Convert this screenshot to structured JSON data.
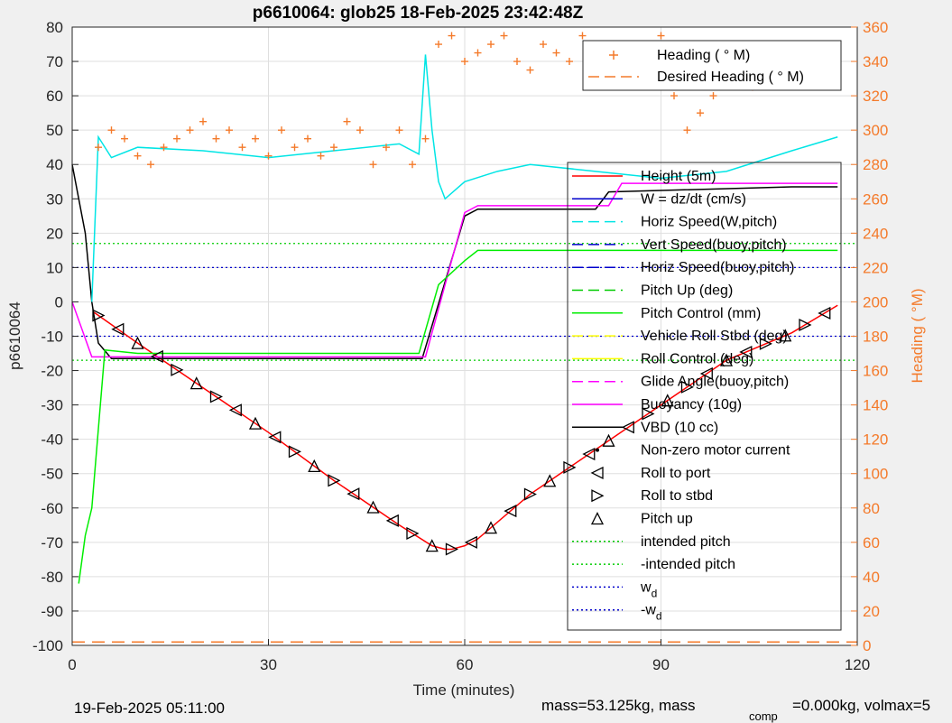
{
  "title": "p6610064: glob25 18-Feb-2025 23:42:48Z",
  "xlabel": "Time (minutes)",
  "ylabel_left": "p6610064",
  "ylabel_right": "Heading (  °M)",
  "footer_left": "19-Feb-2025 05:11:00",
  "footer_right_a": "mass=53.125kg, mass",
  "footer_right_sub": "comp",
  "footer_right_b": "=0.000kg, volmax=5",
  "legend_top": [
    {
      "label": "Heading (  ° M)",
      "color": "#f47a2a",
      "style": "plus"
    },
    {
      "label": "Desired Heading (  ° M)",
      "color": "#f47a2a",
      "style": "dash"
    }
  ],
  "legend_main": [
    {
      "label": "Height (5m)",
      "color": "#ff0000",
      "style": "solid"
    },
    {
      "label": "W = dz/dt (cm/s)",
      "color": "#0000cc",
      "style": "solid"
    },
    {
      "label": "Horiz Speed(W,pitch)",
      "color": "#00e5e5",
      "style": "dash"
    },
    {
      "label": "Vert Speed(buoy,pitch)",
      "color": "#0000cc",
      "style": "dash"
    },
    {
      "label": "Horiz Speed(buoy,pitch)",
      "color": "#0000cc",
      "style": "dash"
    },
    {
      "label": "Pitch Up (deg)",
      "color": "#00cc00",
      "style": "dash"
    },
    {
      "label": "Pitch Control (mm)",
      "color": "#00ee00",
      "style": "solid"
    },
    {
      "label": "Vehicle Roll Stbd (deg)",
      "color": "#ffff00",
      "style": "dash"
    },
    {
      "label": "Roll Control (deg)",
      "color": "#ffff00",
      "style": "solid"
    },
    {
      "label": "Glide Angle(buoy,pitch)",
      "color": "#ff00ff",
      "style": "dash"
    },
    {
      "label": "Buoyancy (10g)",
      "color": "#ff00ff",
      "style": "solid"
    },
    {
      "label": "VBD (10 cc)",
      "color": "#000000",
      "style": "solid"
    },
    {
      "label": "Non-zero motor current",
      "color": "#000000",
      "style": "dot"
    },
    {
      "label": "Roll to port",
      "color": "#000000",
      "style": "tri-left"
    },
    {
      "label": "Roll to stbd",
      "color": "#000000",
      "style": "tri-right"
    },
    {
      "label": "Pitch up",
      "color": "#000000",
      "style": "tri-up"
    },
    {
      "label": "intended pitch",
      "color": "#00cc00",
      "style": "dotted"
    },
    {
      "label": "-intended pitch",
      "color": "#00cc00",
      "style": "dotted"
    },
    {
      "label": "w",
      "sub": "d",
      "color": "#0000cc",
      "style": "dotted"
    },
    {
      "label": "-w",
      "sub": "d",
      "color": "#0000cc",
      "style": "dotted"
    }
  ],
  "chart_data": {
    "type": "line",
    "title": "p6610064: glob25 18-Feb-2025 23:42:48Z",
    "xlabel": "Time (minutes)",
    "ylabel": "p6610064",
    "ylabel_right": "Heading (  °M)",
    "xlim": [
      0,
      120
    ],
    "ylim": [
      -100,
      80
    ],
    "ylim_right": [
      0,
      360
    ],
    "xticks": [
      0,
      30,
      60,
      90,
      120
    ],
    "yticks": [
      80,
      70,
      60,
      50,
      40,
      30,
      20,
      10,
      0,
      -10,
      -20,
      -30,
      -40,
      -50,
      -60,
      -70,
      -80,
      -90,
      -100
    ],
    "yticks_right": [
      360,
      340,
      320,
      300,
      280,
      260,
      240,
      220,
      200,
      180,
      160,
      140,
      120,
      100,
      80,
      60,
      40,
      20,
      0
    ],
    "grid": true,
    "reference_lines": [
      {
        "name": "intended pitch",
        "y": 17,
        "color": "#00cc00"
      },
      {
        "name": "-intended pitch",
        "y": -17,
        "color": "#00cc00"
      },
      {
        "name": "w_d",
        "y": 10,
        "color": "#0000cc"
      },
      {
        "name": "-w_d",
        "y": -10,
        "color": "#0000cc"
      }
    ],
    "series": [
      {
        "name": "Height (5m)",
        "color": "#ff0000",
        "x": [
          3.3,
          10,
          20,
          30,
          40,
          50,
          55,
          57,
          58,
          60,
          62,
          70,
          80,
          90,
          100,
          110,
          117
        ],
        "y": [
          -3,
          -12,
          -25,
          -38,
          -52,
          -65,
          -71,
          -72,
          -72,
          -71,
          -69,
          -56,
          -43,
          -30,
          -17,
          -9,
          -1
        ]
      },
      {
        "name": "VBD (10 cc)",
        "color": "#000000",
        "x": [
          0,
          2,
          3,
          4,
          6,
          53.5,
          60,
          62,
          80,
          82,
          110,
          117
        ],
        "y": [
          40,
          20,
          0,
          -12,
          -16.5,
          -16.5,
          25,
          27,
          27,
          32,
          33.5,
          33.5
        ]
      },
      {
        "name": "Buoyancy (10g)",
        "color": "#ff00ff",
        "x": [
          0,
          3,
          5,
          54,
          60,
          62,
          82,
          84,
          117
        ],
        "y": [
          0,
          -16,
          -16,
          -16,
          26,
          28,
          28,
          34.5,
          34.5
        ]
      },
      {
        "name": "Horiz Speed(W,pitch)",
        "color": "#00e5e5",
        "x": [
          3,
          4,
          6,
          10,
          20,
          30,
          40,
          50,
          53,
          54,
          55,
          56,
          57,
          60,
          65,
          70,
          80,
          90,
          100,
          110,
          117
        ],
        "y": [
          0,
          48,
          42,
          45,
          44,
          42,
          44,
          46,
          43,
          72,
          50,
          35,
          30,
          35,
          38,
          40,
          38,
          36,
          38,
          44,
          48
        ]
      },
      {
        "name": "Pitch Control (mm)",
        "color": "#00ee00",
        "x": [
          1,
          2,
          3,
          5,
          10,
          30,
          53,
          56,
          60,
          62,
          117
        ],
        "y": [
          -82,
          -68,
          -60,
          -14,
          -15,
          -15,
          -15,
          5,
          12,
          15,
          15
        ]
      },
      {
        "name": "Heading (  ° M)",
        "color": "#f47a2a",
        "style": "markers",
        "x": [
          4,
          6,
          8,
          10,
          12,
          14,
          16,
          18,
          20,
          22,
          24,
          26,
          28,
          30,
          32,
          34,
          36,
          38,
          40,
          42,
          44,
          46,
          48,
          50,
          52,
          54,
          56,
          58,
          60,
          62,
          64,
          66,
          68,
          70,
          72,
          74,
          76,
          78,
          80,
          82,
          84,
          86,
          88,
          90,
          92,
          94,
          96,
          98,
          100,
          102,
          104,
          106,
          108,
          110,
          112,
          114,
          116
        ],
        "y": [
          290,
          300,
          295,
          285,
          280,
          290,
          295,
          300,
          305,
          295,
          300,
          290,
          295,
          285,
          300,
          290,
          295,
          285,
          290,
          305,
          300,
          280,
          290,
          300,
          280,
          295,
          350,
          355,
          340,
          345,
          350,
          355,
          340,
          335,
          350,
          345,
          340,
          355,
          350,
          345,
          340,
          330,
          345,
          355,
          320,
          300,
          310,
          320,
          335,
          340,
          325,
          345,
          350,
          340,
          345,
          330,
          340
        ]
      },
      {
        "name": "Desired Heading (  ° M)",
        "color": "#f47a2a",
        "style": "dash",
        "x": [
          0,
          120
        ],
        "y": [
          2,
          2
        ]
      }
    ]
  }
}
